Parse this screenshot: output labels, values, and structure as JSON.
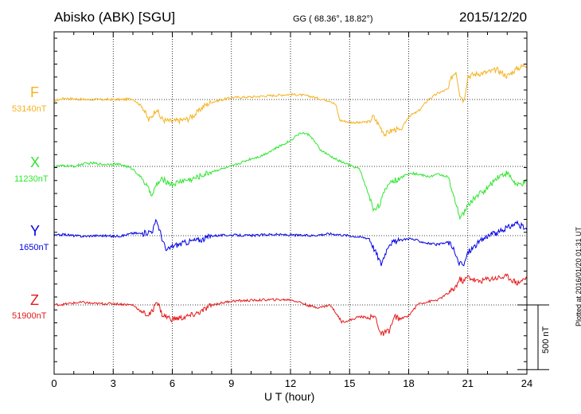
{
  "header": {
    "title": "Abisko (ABK)  [SGU]",
    "coords": "GG ( 68.36°,  18.82°)",
    "date": "2015/12/20"
  },
  "side_note": "Plotted at 2016/01/20 01:31 UT",
  "scale_label": "500 nT",
  "chart_data": {
    "type": "line",
    "title": "Abisko (ABK)  [SGU]",
    "xlabel": "U T (hour)",
    "ylabel": "",
    "xlim": [
      0,
      24
    ],
    "xticks": [
      0,
      3,
      6,
      9,
      12,
      15,
      18,
      21,
      24
    ],
    "grid": true,
    "scale_bar_nT": 500,
    "series": [
      {
        "name": "F",
        "baseline_label": "53140nT",
        "color": "#f5b21f",
        "x": [
          0,
          0.5,
          1,
          1.5,
          2,
          2.5,
          3,
          3.5,
          4,
          4.5,
          4.8,
          5,
          5.2,
          5.4,
          5.6,
          6,
          6.4,
          6.8,
          7.2,
          7.6,
          8,
          9,
          10,
          11,
          12,
          12.5,
          13,
          13.5,
          14,
          14.3,
          14.5,
          15,
          15.5,
          16,
          16.2,
          16.5,
          16.8,
          17,
          17.3,
          17.6,
          18,
          18.5,
          19,
          19.5,
          20,
          20.2,
          20.4,
          20.6,
          20.8,
          21,
          21.5,
          22,
          22.5,
          23,
          23.5,
          24
        ],
        "values": [
          -10,
          10,
          5,
          0,
          0,
          0,
          0,
          0,
          5,
          -60,
          -160,
          -120,
          -70,
          -140,
          -160,
          -170,
          -160,
          -150,
          -110,
          -50,
          -20,
          15,
          20,
          30,
          40,
          35,
          25,
          5,
          -10,
          -40,
          -160,
          -175,
          -180,
          -170,
          -130,
          -200,
          -270,
          -250,
          -230,
          -240,
          -130,
          -90,
          0,
          50,
          80,
          180,
          220,
          40,
          -10,
          180,
          200,
          210,
          230,
          180,
          240,
          270
        ]
      },
      {
        "name": "X",
        "baseline_label": "11230nT",
        "color": "#2ee62e",
        "x": [
          0,
          0.5,
          1,
          1.5,
          2,
          2.5,
          3,
          3.5,
          4,
          4.5,
          4.8,
          5,
          5.2,
          5.5,
          6,
          6.5,
          7,
          7.5,
          8,
          8.5,
          9,
          9.5,
          10,
          10.5,
          11,
          11.5,
          12,
          12.3,
          12.6,
          13,
          13.5,
          14,
          14.5,
          15,
          15.5,
          16,
          16.2,
          16.5,
          17,
          17.5,
          18,
          18.5,
          19,
          19.5,
          20,
          20.2,
          20.4,
          20.6,
          20.8,
          21,
          21.5,
          22,
          22.5,
          23,
          23.5,
          24
        ],
        "values": [
          0,
          5,
          0,
          20,
          25,
          15,
          20,
          10,
          -20,
          -100,
          -180,
          -220,
          -140,
          -100,
          -140,
          -110,
          -100,
          -70,
          -40,
          -20,
          0,
          30,
          60,
          80,
          120,
          160,
          200,
          240,
          260,
          240,
          130,
          80,
          40,
          10,
          -20,
          -230,
          -330,
          -300,
          -120,
          -100,
          -50,
          -60,
          -80,
          -60,
          -80,
          -200,
          -290,
          -400,
          -360,
          -300,
          -220,
          -170,
          -80,
          -50,
          -150,
          -120
        ]
      },
      {
        "name": "Y",
        "baseline_label": "1650nT",
        "color": "#0000e6",
        "x": [
          0,
          0.5,
          1,
          1.5,
          2,
          2.5,
          3,
          3.5,
          4,
          4.5,
          5,
          5.2,
          5.5,
          5.7,
          6,
          6.5,
          7,
          7.5,
          8,
          9,
          10,
          11,
          12,
          13,
          14,
          15,
          15.5,
          16,
          16.3,
          16.6,
          17,
          17.5,
          18,
          18.5,
          19,
          19.5,
          20,
          20.2,
          20.5,
          20.8,
          21,
          21.5,
          22,
          22.5,
          23,
          23.5,
          24
        ],
        "values": [
          0,
          10,
          0,
          -5,
          0,
          0,
          -5,
          0,
          20,
          15,
          40,
          120,
          -30,
          -120,
          -80,
          -60,
          -40,
          -30,
          0,
          5,
          0,
          10,
          5,
          0,
          15,
          0,
          -10,
          -20,
          -120,
          -220,
          -60,
          -40,
          -20,
          -40,
          -60,
          -70,
          -50,
          -80,
          -200,
          -230,
          -130,
          -60,
          0,
          20,
          60,
          100,
          40
        ]
      },
      {
        "name": "Z",
        "baseline_label": "51900nT",
        "color": "#e61919",
        "x": [
          0,
          0.5,
          1,
          1.5,
          2,
          2.5,
          3,
          3.5,
          4,
          4.5,
          4.8,
          5,
          5.2,
          5.5,
          6,
          6.5,
          7,
          7.5,
          8,
          9,
          10,
          11,
          12,
          12.5,
          13,
          13.5,
          14,
          14.3,
          14.6,
          15,
          15.5,
          16,
          16.3,
          16.6,
          17,
          17.3,
          17.6,
          18,
          18.5,
          19,
          19.5,
          20,
          20.3,
          20.6,
          20.8,
          21,
          21.5,
          22,
          22.5,
          23,
          23.5,
          24
        ],
        "values": [
          0,
          5,
          15,
          20,
          10,
          10,
          10,
          5,
          0,
          -60,
          -80,
          -50,
          40,
          -80,
          -110,
          -100,
          -80,
          -50,
          0,
          30,
          35,
          40,
          40,
          20,
          -10,
          -20,
          0,
          -60,
          -130,
          -120,
          -90,
          -100,
          -90,
          -230,
          -200,
          -90,
          -110,
          -80,
          10,
          25,
          40,
          90,
          120,
          200,
          180,
          220,
          180,
          200,
          210,
          220,
          170,
          210
        ]
      }
    ]
  }
}
